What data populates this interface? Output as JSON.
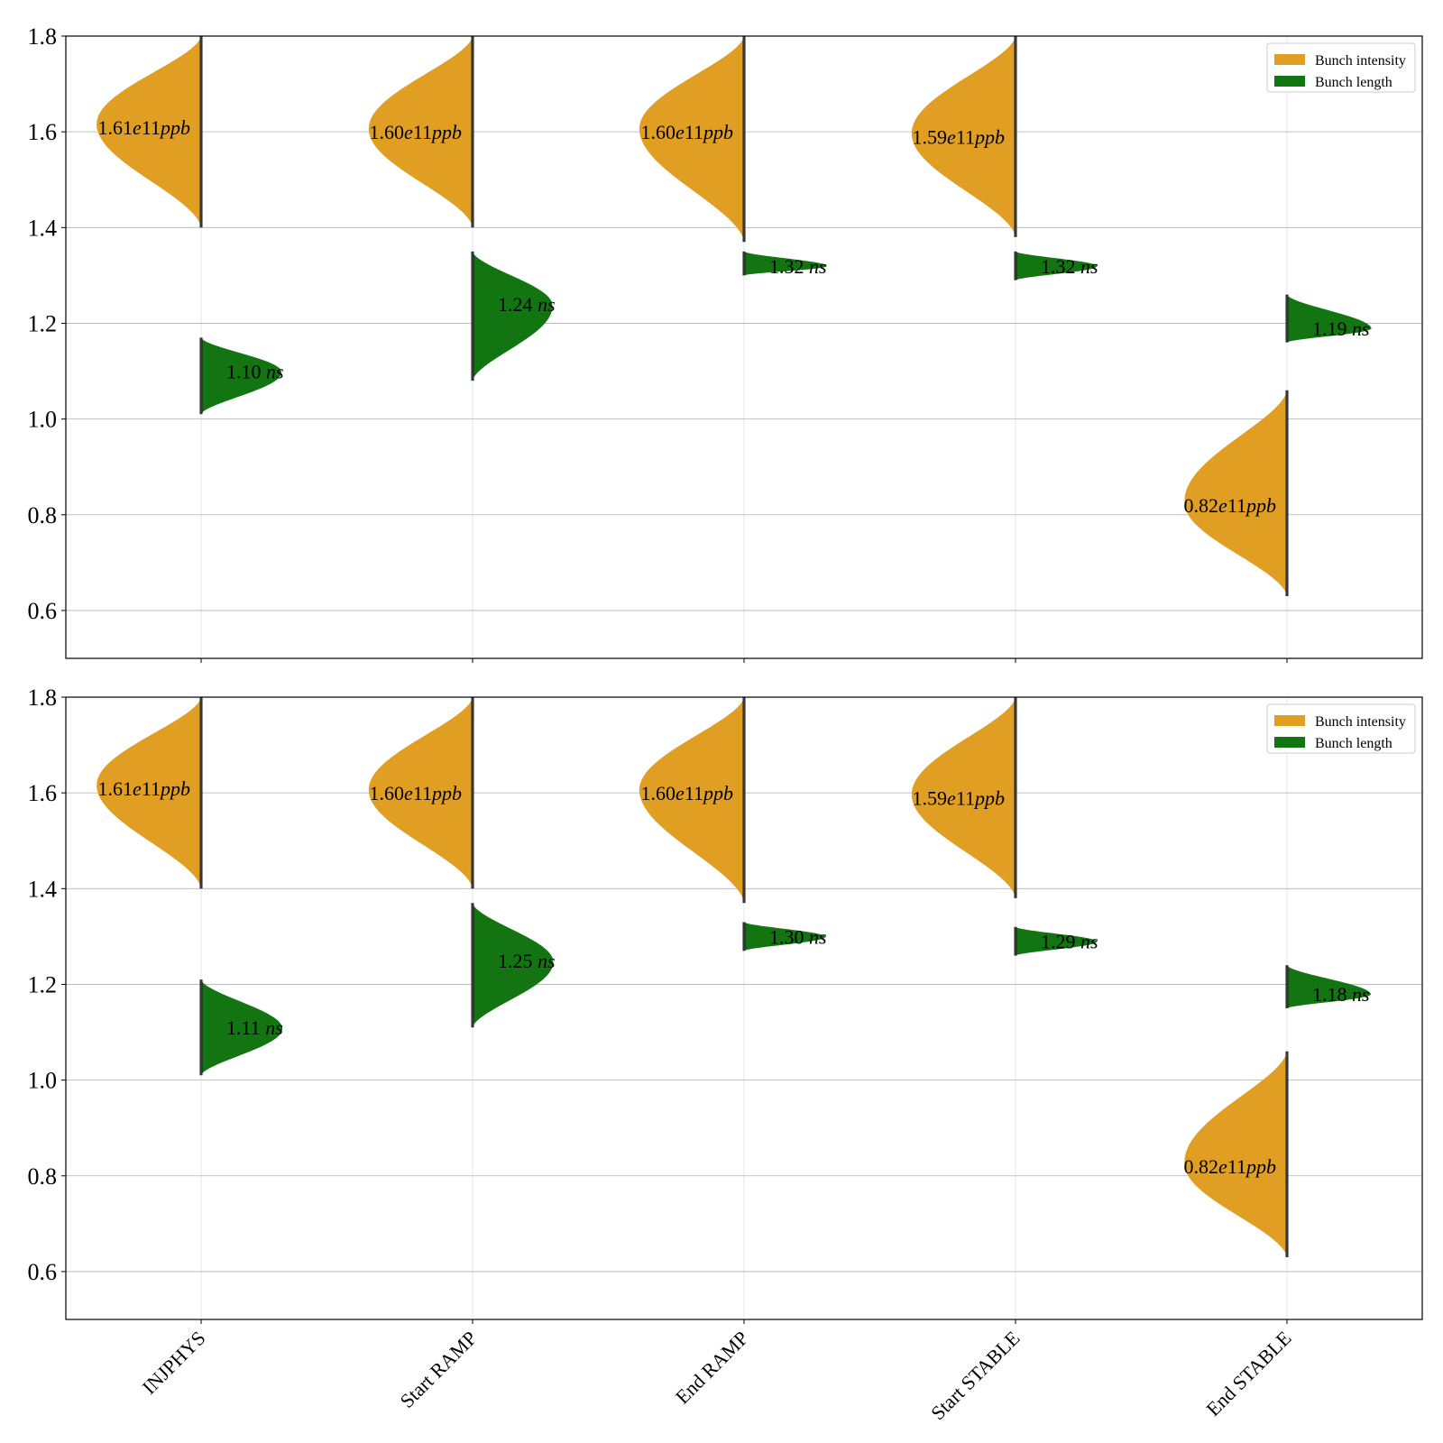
{
  "chart_data": [
    {
      "type": "violin",
      "categories": [
        "INJPHYS",
        "Start RAMP",
        "End RAMP",
        "Start STABLE",
        "End STABLE"
      ],
      "ylim": [
        0.5,
        1.8
      ],
      "yticks": [
        "0.6",
        "0.8",
        "1.0",
        "1.2",
        "1.4",
        "1.6",
        "1.8"
      ],
      "grid": true,
      "legend_position": "top-right",
      "series": [
        {
          "name": "Bunch intensity",
          "side": "left",
          "color": "#e09e22",
          "medians": [
            1.61,
            1.6,
            1.6,
            1.59,
            0.82
          ],
          "range_low": [
            1.4,
            1.4,
            1.37,
            1.38,
            0.63
          ],
          "range_high": [
            1.8,
            1.8,
            1.8,
            1.8,
            1.06
          ],
          "value_labels": [
            {
              "num": "1.61",
              "exp": "e",
              "mant": "11",
              "unit": "ppb"
            },
            {
              "num": "1.60",
              "exp": "e",
              "mant": "11",
              "unit": "ppb"
            },
            {
              "num": "1.60",
              "exp": "e",
              "mant": "11",
              "unit": "ppb"
            },
            {
              "num": "1.59",
              "exp": "e",
              "mant": "11",
              "unit": "ppb"
            },
            {
              "num": "0.82",
              "exp": "e",
              "mant": "11",
              "unit": "ppb"
            }
          ]
        },
        {
          "name": "Bunch length",
          "side": "right",
          "color": "#127512",
          "medians": [
            1.1,
            1.24,
            1.32,
            1.32,
            1.19
          ],
          "range_low": [
            1.01,
            1.08,
            1.3,
            1.29,
            1.16
          ],
          "range_high": [
            1.17,
            1.35,
            1.35,
            1.35,
            1.26
          ],
          "value_labels": [
            {
              "num": "1.10",
              "unit": "ns"
            },
            {
              "num": "1.24",
              "unit": "ns"
            },
            {
              "num": "1.32",
              "unit": "ns"
            },
            {
              "num": "1.32",
              "unit": "ns"
            },
            {
              "num": "1.19",
              "unit": "ns"
            }
          ]
        }
      ]
    },
    {
      "type": "violin",
      "categories": [
        "INJPHYS",
        "Start RAMP",
        "End RAMP",
        "Start STABLE",
        "End STABLE"
      ],
      "ylim": [
        0.5,
        1.8
      ],
      "yticks": [
        "0.6",
        "0.8",
        "1.0",
        "1.2",
        "1.4",
        "1.6",
        "1.8"
      ],
      "grid": true,
      "legend_position": "top-right",
      "series": [
        {
          "name": "Bunch intensity",
          "side": "left",
          "color": "#e09e22",
          "medians": [
            1.61,
            1.6,
            1.6,
            1.59,
            0.82
          ],
          "range_low": [
            1.4,
            1.4,
            1.37,
            1.38,
            0.63
          ],
          "range_high": [
            1.8,
            1.8,
            1.8,
            1.8,
            1.06
          ],
          "value_labels": [
            {
              "num": "1.61",
              "exp": "e",
              "mant": "11",
              "unit": "ppb"
            },
            {
              "num": "1.60",
              "exp": "e",
              "mant": "11",
              "unit": "ppb"
            },
            {
              "num": "1.60",
              "exp": "e",
              "mant": "11",
              "unit": "ppb"
            },
            {
              "num": "1.59",
              "exp": "e",
              "mant": "11",
              "unit": "ppb"
            },
            {
              "num": "0.82",
              "exp": "e",
              "mant": "11",
              "unit": "ppb"
            }
          ]
        },
        {
          "name": "Bunch length",
          "side": "right",
          "color": "#127512",
          "medians": [
            1.11,
            1.25,
            1.3,
            1.29,
            1.18
          ],
          "range_low": [
            1.01,
            1.11,
            1.27,
            1.26,
            1.15
          ],
          "range_high": [
            1.21,
            1.37,
            1.33,
            1.32,
            1.24
          ],
          "value_labels": [
            {
              "num": "1.11",
              "unit": "ns"
            },
            {
              "num": "1.25",
              "unit": "ns"
            },
            {
              "num": "1.30",
              "unit": "ns"
            },
            {
              "num": "1.29",
              "unit": "ns"
            },
            {
              "num": "1.18",
              "unit": "ns"
            }
          ]
        }
      ]
    }
  ]
}
